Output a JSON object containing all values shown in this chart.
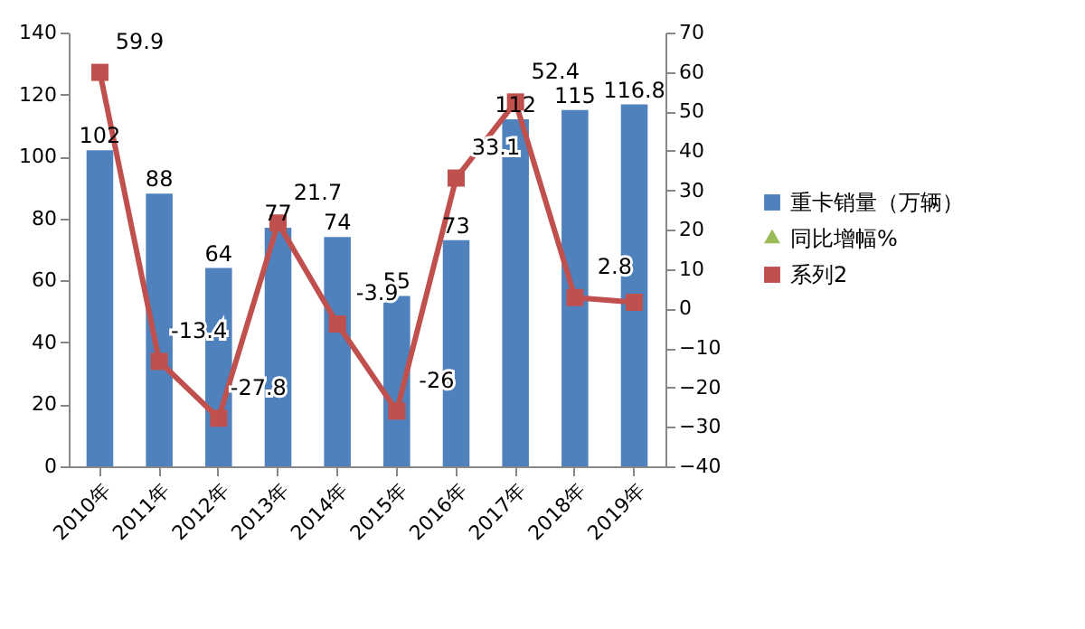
{
  "chart_data": {
    "type": "bar",
    "categories": [
      "2010年",
      "2011年",
      "2012年",
      "2013年",
      "2014年",
      "2015年",
      "2016年",
      "2017年",
      "2018年",
      "2019年"
    ],
    "series": [
      {
        "name": "重卡销量（万辆）",
        "type": "bar",
        "color": "#4f81bd",
        "values": [
          102,
          88,
          64,
          77,
          74,
          55,
          73,
          112,
          115,
          116.8
        ],
        "value_labels": [
          "102",
          "88",
          "64",
          "77",
          "74",
          "55",
          "73",
          "112",
          "115",
          "116.8"
        ]
      },
      {
        "name": "同比增幅%",
        "type": "line",
        "axis": "y2",
        "color": "#9bbb59",
        "marker": "triangle",
        "values": [
          null,
          null,
          null,
          null,
          null,
          null,
          null,
          null,
          null,
          null
        ]
      },
      {
        "name": "系列2",
        "type": "line",
        "axis": "y2",
        "color": "#c0504d",
        "marker": "square",
        "values": [
          59.9,
          -13.4,
          -27.8,
          21.7,
          -3.9,
          -26,
          33.1,
          52.4,
          2.8,
          1.6
        ],
        "value_labels": [
          "59.9",
          "-13.4",
          "-27.8",
          "21.7",
          "-3.9",
          "-26",
          "33.1",
          "52.4",
          "2.8",
          null
        ]
      }
    ],
    "ylim": [
      0,
      140
    ],
    "yticks": [
      0,
      20,
      40,
      60,
      80,
      100,
      120,
      140
    ],
    "y2lim": [
      -40,
      70
    ],
    "y2ticks": [
      -40,
      -30,
      -20,
      -10,
      0,
      10,
      20,
      30,
      40,
      50,
      60,
      70
    ],
    "grid": false,
    "legend": "right",
    "line_style": "solid"
  }
}
